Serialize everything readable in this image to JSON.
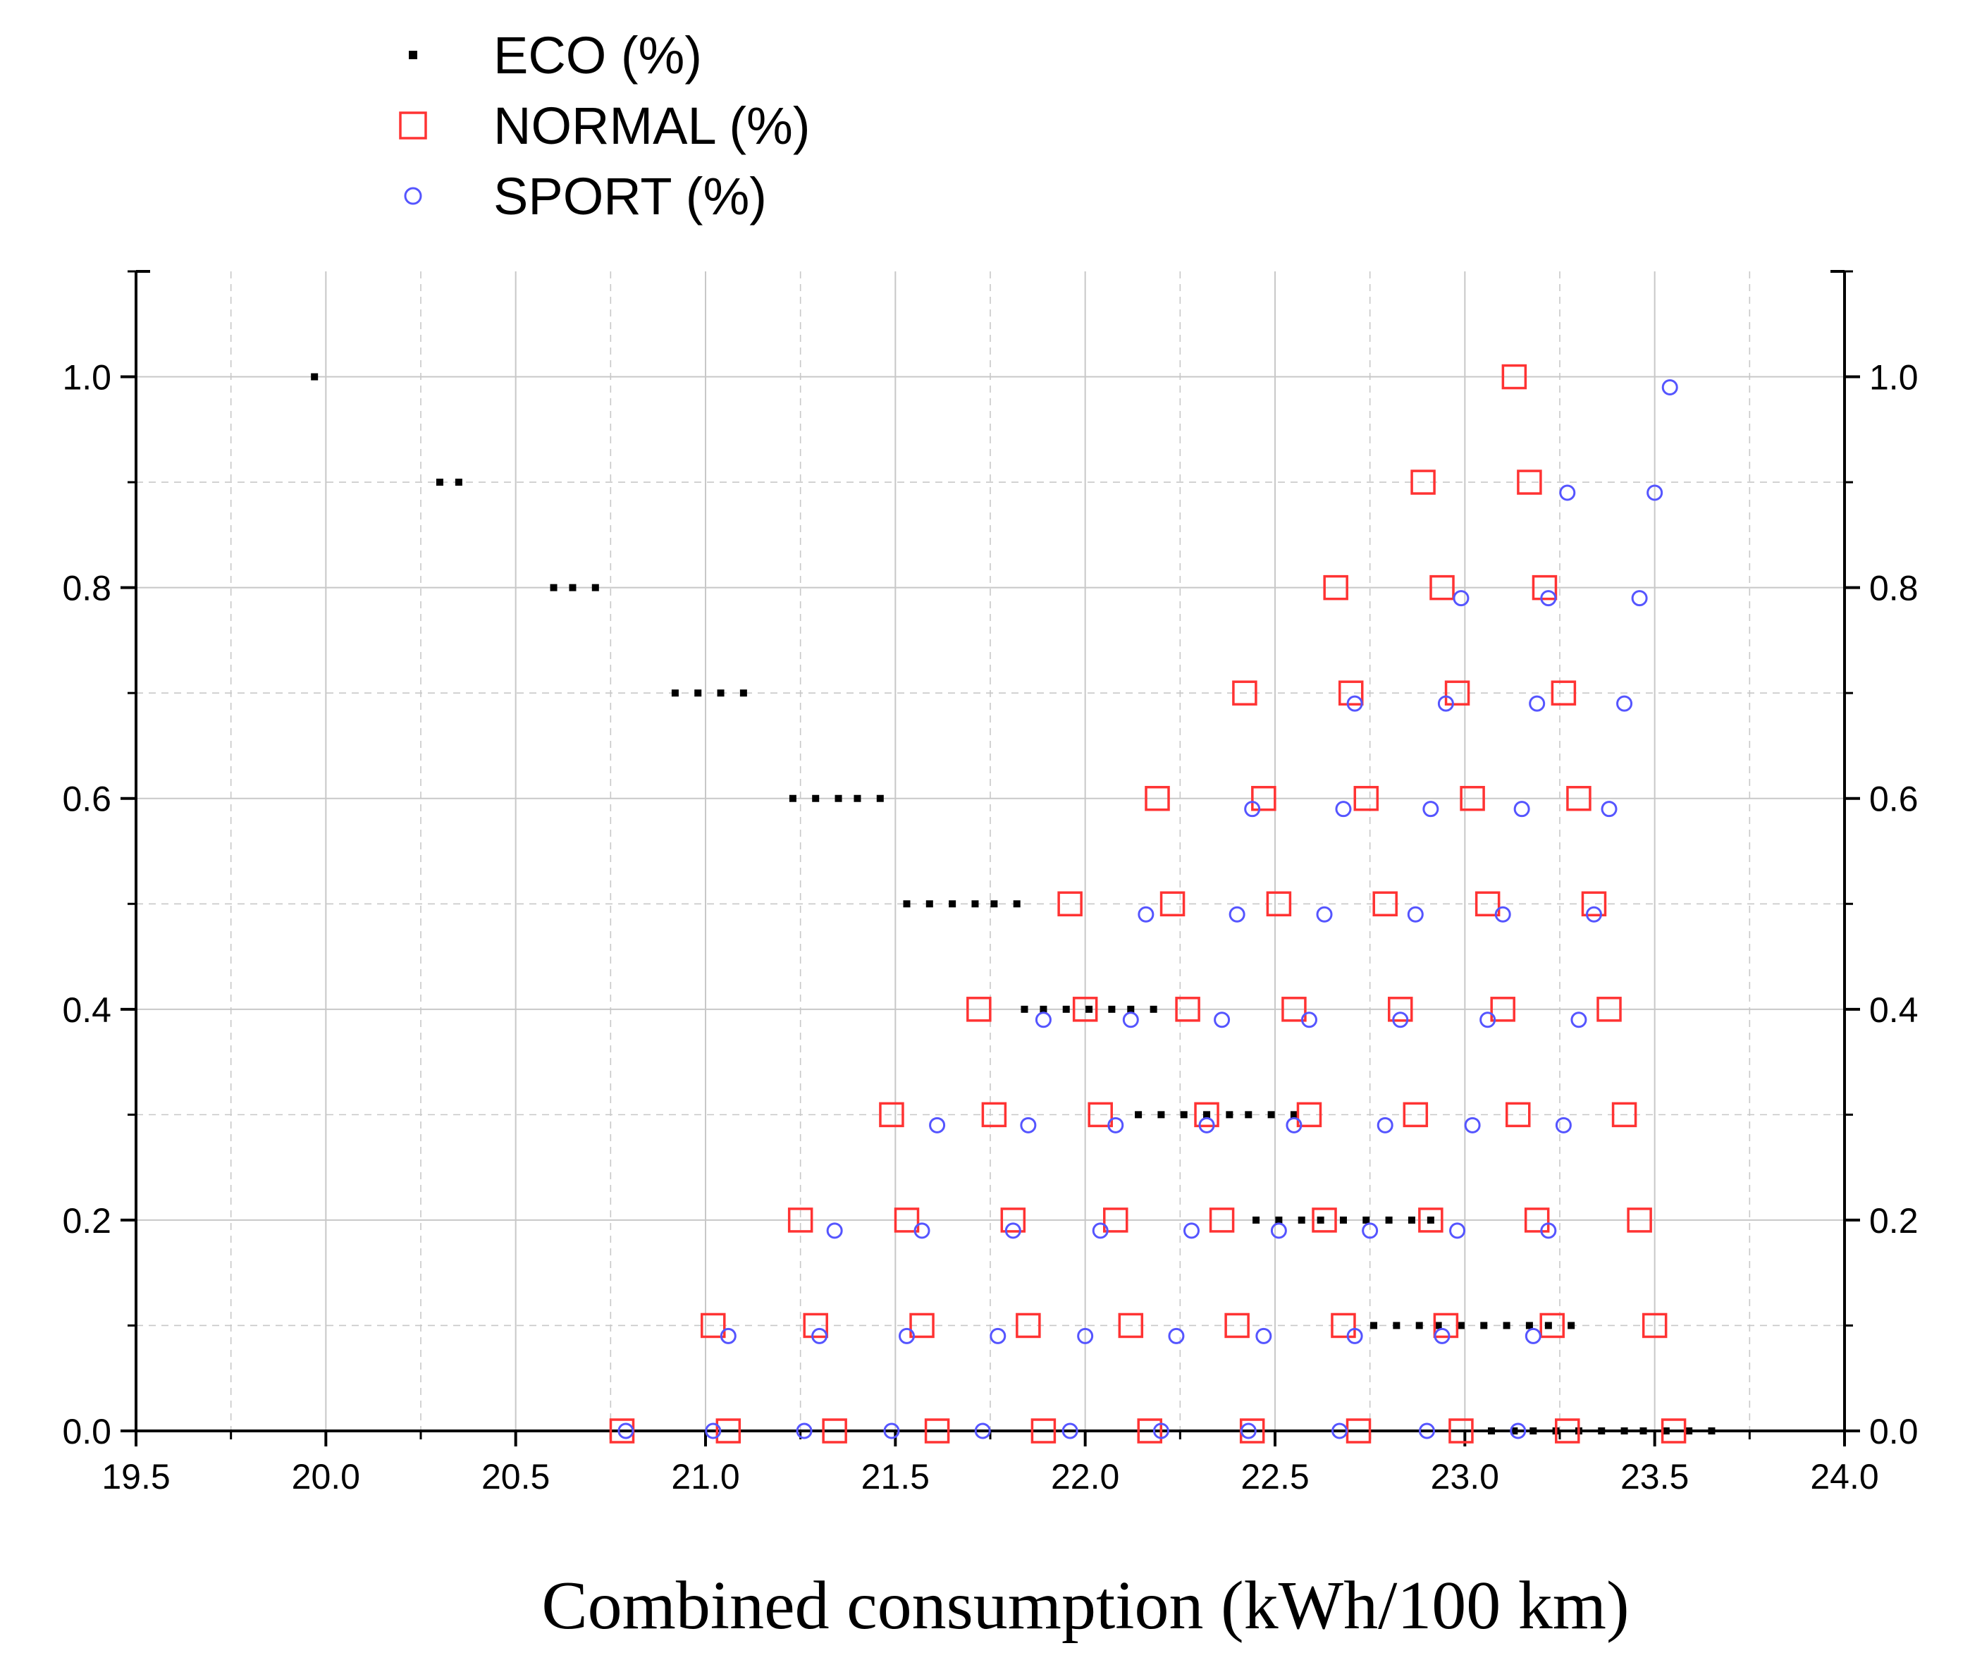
{
  "chart_data": {
    "type": "scatter",
    "title": "",
    "xlabel": "Combined consumption (kWh/100 km)",
    "ylabel": "",
    "xlim": [
      19.5,
      24.0
    ],
    "ylim": [
      0.0,
      1.1
    ],
    "x_ticks": [
      "19.5",
      "20.0",
      "20.5",
      "21.0",
      "21.5",
      "22.0",
      "22.5",
      "23.0",
      "23.5",
      "24.0"
    ],
    "y_ticks": [
      "0.0",
      "0.2",
      "0.4",
      "0.6",
      "0.8",
      "1.0"
    ],
    "grid": true,
    "legend_position": "top-left",
    "colors": {
      "eco": "#000000",
      "normal": "#ff3333",
      "sport": "#5555ff",
      "grid": "#c8c8c8"
    },
    "series": [
      {
        "name": "ECO (%)",
        "marker": "small-square",
        "rows": [
          {
            "y": 1.0,
            "x": [
              19.97
            ]
          },
          {
            "y": 0.9,
            "x": [
              20.3,
              20.35
            ]
          },
          {
            "y": 0.8,
            "x": [
              20.6,
              20.65,
              20.71
            ]
          },
          {
            "y": 0.7,
            "x": [
              20.92,
              20.98,
              21.04,
              21.1
            ]
          },
          {
            "y": 0.6,
            "x": [
              21.23,
              21.29,
              21.35,
              21.4,
              21.46
            ]
          },
          {
            "y": 0.5,
            "x": [
              21.53,
              21.59,
              21.65,
              21.71,
              21.76,
              21.82
            ]
          },
          {
            "y": 0.4,
            "x": [
              21.84,
              21.89,
              21.95,
              22.01,
              22.07,
              22.12,
              22.18
            ]
          },
          {
            "y": 0.3,
            "x": [
              22.14,
              22.2,
              22.26,
              22.32,
              22.38,
              22.43,
              22.49,
              22.55
            ]
          },
          {
            "y": 0.2,
            "x": [
              22.45,
              22.51,
              22.57,
              22.62,
              22.68,
              22.74,
              22.8,
              22.86,
              22.91
            ]
          },
          {
            "y": 0.1,
            "x": [
              22.76,
              22.82,
              22.88,
              22.93,
              22.99,
              23.05,
              23.11,
              23.17,
              23.22,
              23.28
            ]
          },
          {
            "y": 0.0,
            "x": [
              23.07,
              23.13,
              23.18,
              23.24,
              23.3,
              23.36,
              23.42,
              23.47,
              23.53,
              23.59,
              23.65
            ]
          }
        ]
      },
      {
        "name": "NORMAL (%)",
        "marker": "open-square",
        "rows": [
          {
            "y": 1.0,
            "x": [
              23.13
            ]
          },
          {
            "y": 0.9,
            "x": [
              22.89,
              23.17
            ]
          },
          {
            "y": 0.8,
            "x": [
              22.66,
              22.94,
              23.21
            ]
          },
          {
            "y": 0.7,
            "x": [
              22.42,
              22.7,
              22.98,
              23.26
            ]
          },
          {
            "y": 0.6,
            "x": [
              22.19,
              22.47,
              22.74,
              23.02,
              23.3
            ]
          },
          {
            "y": 0.5,
            "x": [
              21.96,
              22.23,
              22.51,
              22.79,
              23.06,
              23.34
            ]
          },
          {
            "y": 0.4,
            "x": [
              21.72,
              22.0,
              22.27,
              22.55,
              22.83,
              23.1,
              23.38
            ]
          },
          {
            "y": 0.3,
            "x": [
              21.49,
              21.76,
              22.04,
              22.32,
              22.59,
              22.87,
              23.14,
              23.42
            ]
          },
          {
            "y": 0.2,
            "x": [
              21.25,
              21.53,
              21.81,
              22.08,
              22.36,
              22.63,
              22.91,
              23.19,
              23.46
            ]
          },
          {
            "y": 0.1,
            "x": [
              21.02,
              21.29,
              21.57,
              21.85,
              22.12,
              22.4,
              22.68,
              22.95,
              23.23,
              23.5
            ]
          },
          {
            "y": 0.0,
            "x": [
              20.78,
              21.06,
              21.34,
              21.61,
              21.89,
              22.17,
              22.44,
              22.72,
              22.99,
              23.27,
              23.55
            ]
          }
        ]
      },
      {
        "name": "SPORT (%)",
        "marker": "open-circle",
        "rows": [
          {
            "y": 0.99,
            "x": [
              23.54
            ]
          },
          {
            "y": 0.89,
            "x": [
              23.27,
              23.5
            ]
          },
          {
            "y": 0.79,
            "x": [
              22.99,
              23.22,
              23.46
            ]
          },
          {
            "y": 0.69,
            "x": [
              22.71,
              22.95,
              23.19,
              23.42
            ]
          },
          {
            "y": 0.59,
            "x": [
              22.44,
              22.68,
              22.91,
              23.15,
              23.38
            ]
          },
          {
            "y": 0.49,
            "x": [
              22.16,
              22.4,
              22.63,
              22.87,
              23.1,
              23.34
            ]
          },
          {
            "y": 0.39,
            "x": [
              21.89,
              22.12,
              22.36,
              22.59,
              22.83,
              23.06,
              23.3
            ]
          },
          {
            "y": 0.29,
            "x": [
              21.61,
              21.85,
              22.08,
              22.32,
              22.55,
              22.79,
              23.02,
              23.26
            ]
          },
          {
            "y": 0.19,
            "x": [
              21.34,
              21.57,
              21.81,
              22.04,
              22.28,
              22.51,
              22.75,
              22.98,
              23.22
            ]
          },
          {
            "y": 0.09,
            "x": [
              21.06,
              21.3,
              21.53,
              21.77,
              22.0,
              22.24,
              22.47,
              22.71,
              22.94,
              23.18
            ]
          },
          {
            "y": 0.0,
            "x": [
              20.79,
              21.02,
              21.26,
              21.49,
              21.73,
              21.96,
              22.2,
              22.43,
              22.67,
              22.9,
              23.14
            ]
          }
        ]
      }
    ]
  }
}
